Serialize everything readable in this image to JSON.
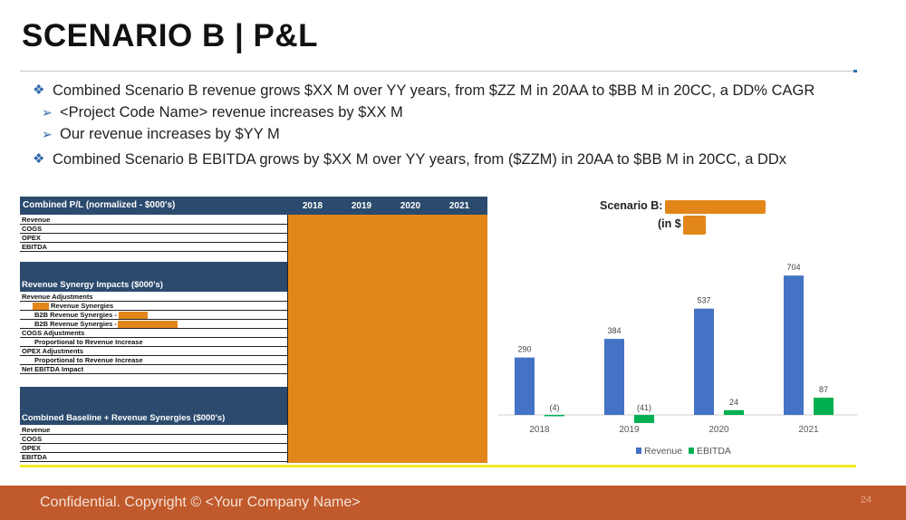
{
  "slide": {
    "title": "SCENARIO B | P&L",
    "page_number": "24",
    "footer": "Confidential. Copyright © <Your Company Name>"
  },
  "bullets": {
    "b1": "Combined Scenario B revenue grows $XX M over YY years, from $ZZ M in 20AA to $BB M in 20CC, a DD% CAGR",
    "b1a": "<Project Code Name> revenue increases by $XX M",
    "b1b": "Our revenue increases by $YY M",
    "b2": "Combined Scenario B EBITDA grows by $XX M over YY years, from ($ZZM) in 20AA to $BB M in 20CC, a DDx"
  },
  "table": {
    "header": "Combined P/L (normalized - $000's)",
    "years": [
      "2018",
      "2019",
      "2020",
      "2021"
    ],
    "section1_rows": [
      "Revenue",
      "COGS",
      "OPEX",
      "EBITDA"
    ],
    "section2_title": "Revenue Synergy Impacts ($000's)",
    "section2_rows": {
      "r1": "Revenue Adjustments",
      "r2": "Revenue Synergies",
      "r3": "B2B Revenue Synergies -",
      "r4": "B2B Revenue Synergies -",
      "r5": "COGS Adjustments",
      "r6": "Proportional to Revenue Increase",
      "r7": "OPEX Adjustments",
      "r8": "Proportional to Revenue Increase",
      "r9": "Net EBITDA Impact"
    },
    "section3_title": "Combined Baseline + Revenue Synergies ($000's)",
    "section3_rows": [
      "Revenue",
      "COGS",
      "OPEX",
      "EBITDA"
    ]
  },
  "chart_header": {
    "label1": "Scenario B:",
    "label2": "(in $"
  },
  "chart_data": {
    "type": "bar",
    "categories": [
      "2018",
      "2019",
      "2020",
      "2021"
    ],
    "series": [
      {
        "name": "Revenue",
        "values": [
          290,
          384,
          537,
          704
        ],
        "labels": [
          "290",
          "384",
          "537",
          "704"
        ],
        "color": "#4472c4"
      },
      {
        "name": "EBITDA",
        "values": [
          -4,
          -41,
          24,
          87
        ],
        "labels": [
          "(4)",
          "(41)",
          "24",
          "87"
        ],
        "color": "#00b050"
      }
    ],
    "ylim": [
      -60,
      760
    ],
    "legend": "bottom",
    "grid": false
  },
  "colors": {
    "accent_orange": "#e3861a",
    "header_blue": "#2b4a6e",
    "footer": "#c0592b",
    "bullet_blue": "#2c67a8"
  }
}
